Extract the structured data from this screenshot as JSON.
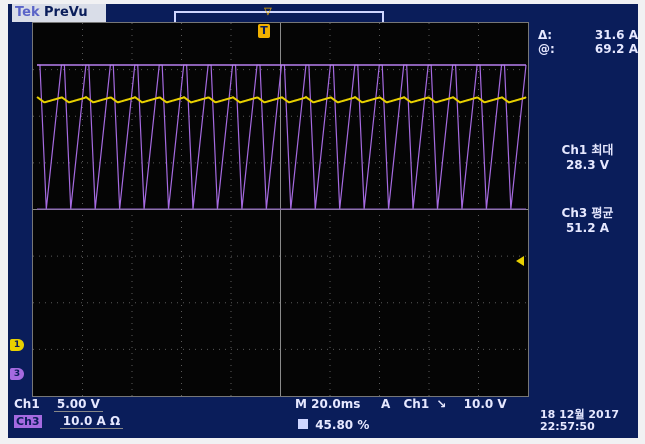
{
  "brand": {
    "tek": "Tek",
    "mode": "PreVu"
  },
  "measurements": {
    "delta_label": "Δ:",
    "delta_value": "31.6 A",
    "at_label": "@:",
    "at_value": "69.2 A",
    "ch1_max_label": "Ch1 최대",
    "ch1_max_value": "28.3 V",
    "ch3_avg_label": "Ch3 평균",
    "ch3_avg_value": "51.2 A"
  },
  "bottom": {
    "ch1_label": "Ch1",
    "ch1_scale": "5.00 V",
    "ch3_label": "Ch3",
    "ch3_scale": "10.0 A Ω",
    "timebase": "M 20.0ms",
    "trigger_mode": "A",
    "trigger_source": "Ch1",
    "trigger_slope": "↘",
    "trigger_level": "10.0 V",
    "percent": "45.80 %",
    "date": "18 12월 2017",
    "time": "22:57:50"
  },
  "markers": {
    "ch1": "1",
    "ch3": "3",
    "trigger_top": "T"
  },
  "colors": {
    "screen": "#0a1d5a",
    "ch1": "#e8d000",
    "ch3": "#a56ae0",
    "grid": "#050505"
  }
}
